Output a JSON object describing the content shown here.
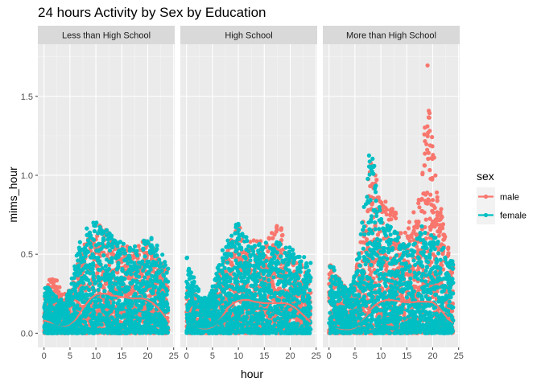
{
  "chart_data": {
    "type": "scatter",
    "title": "24 hours Activity by Sex by Education",
    "xlabel": "hour",
    "ylabel": "mims_hour",
    "xlim": [
      -1.2,
      25.2
    ],
    "ylim": [
      -0.09,
      1.83
    ],
    "x_ticks": [
      0,
      5,
      10,
      15,
      20,
      25
    ],
    "x_tick_labels": [
      "0",
      "5",
      "10",
      "15",
      "20",
      "25"
    ],
    "y_ticks": [
      0.0,
      0.5,
      1.0,
      1.5
    ],
    "y_tick_labels": [
      "0.0",
      "0.5",
      "1.0",
      "1.5"
    ],
    "grid": true,
    "legend": {
      "title": "sex",
      "placement": "right",
      "entries": [
        {
          "label": "male",
          "color": "#F8766D"
        },
        {
          "label": "female",
          "color": "#00BFC4"
        }
      ]
    },
    "series_colors": {
      "male": "#F8766D",
      "female": "#00BFC4"
    },
    "panels": [
      {
        "strip": "Less than High School",
        "series": [
          {
            "name": "male",
            "smooth_x": [
              0,
              1,
              2,
              3,
              4,
              5,
              6,
              7,
              8,
              9,
              10,
              11,
              12,
              13,
              14,
              15,
              16,
              17,
              18,
              19,
              20,
              21,
              22,
              23,
              23.9
            ],
            "smooth_y": [
              0.08,
              0.07,
              0.05,
              0.04,
              0.04,
              0.05,
              0.08,
              0.13,
              0.18,
              0.22,
              0.245,
              0.25,
              0.25,
              0.24,
              0.235,
              0.23,
              0.225,
              0.22,
              0.22,
              0.22,
              0.21,
              0.19,
              0.16,
              0.12,
              0.08
            ],
            "upper_y": [
              0.36,
              0.34,
              0.38,
              0.3,
              0.25,
              0.28,
              0.38,
              0.5,
              0.6,
              0.62,
              0.65,
              0.7,
              0.66,
              0.6,
              0.58,
              0.55,
              0.55,
              0.52,
              0.55,
              0.58,
              0.6,
              0.55,
              0.5,
              0.45,
              0.4
            ]
          },
          {
            "name": "female",
            "smooth_x": [
              0,
              1,
              2,
              3,
              4,
              5,
              6,
              7,
              8,
              9,
              10,
              11,
              12,
              13,
              14,
              15,
              16,
              17,
              18,
              19,
              20,
              21,
              22,
              23,
              23.9
            ],
            "smooth_y": [
              0.07,
              0.06,
              0.05,
              0.04,
              0.035,
              0.045,
              0.07,
              0.1,
              0.13,
              0.15,
              0.16,
              0.165,
              0.165,
              0.16,
              0.155,
              0.15,
              0.148,
              0.145,
              0.14,
              0.135,
              0.13,
              0.12,
              0.1,
              0.08,
              0.06
            ],
            "upper_y": [
              0.32,
              0.28,
              0.25,
              0.22,
              0.2,
              0.3,
              0.45,
              0.6,
              0.66,
              0.68,
              0.72,
              0.72,
              0.66,
              0.62,
              0.6,
              0.58,
              0.56,
              0.55,
              0.55,
              0.58,
              0.62,
              0.6,
              0.55,
              0.5,
              0.45
            ]
          }
        ]
      },
      {
        "strip": "High School",
        "series": [
          {
            "name": "male",
            "smooth_x": [
              0,
              1,
              2,
              3,
              4,
              5,
              6,
              7,
              8,
              9,
              10,
              11,
              12,
              13,
              14,
              15,
              16,
              17,
              18,
              19,
              20,
              21,
              22,
              23,
              23.9
            ],
            "smooth_y": [
              0.06,
              0.05,
              0.04,
              0.03,
              0.03,
              0.04,
              0.07,
              0.11,
              0.16,
              0.19,
              0.205,
              0.21,
              0.21,
              0.2,
              0.195,
              0.19,
              0.19,
              0.19,
              0.19,
              0.19,
              0.18,
              0.16,
              0.13,
              0.1,
              0.07
            ],
            "upper_y": [
              0.3,
              0.28,
              0.25,
              0.2,
              0.18,
              0.22,
              0.35,
              0.45,
              0.55,
              0.65,
              0.72,
              0.62,
              0.6,
              0.6,
              0.58,
              0.6,
              0.62,
              0.68,
              0.76,
              0.55,
              0.5,
              0.48,
              0.45,
              0.4,
              0.35
            ]
          },
          {
            "name": "female",
            "smooth_x": [
              0,
              1,
              2,
              3,
              4,
              5,
              6,
              7,
              8,
              9,
              10,
              11,
              12,
              13,
              14,
              15,
              16,
              17,
              18,
              19,
              20,
              21,
              22,
              23,
              23.9
            ],
            "smooth_y": [
              0.06,
              0.05,
              0.04,
              0.035,
              0.035,
              0.045,
              0.07,
              0.1,
              0.13,
              0.15,
              0.16,
              0.162,
              0.16,
              0.158,
              0.155,
              0.152,
              0.15,
              0.148,
              0.145,
              0.14,
              0.13,
              0.115,
              0.095,
              0.075,
              0.055
            ],
            "upper_y": [
              0.5,
              0.4,
              0.3,
              0.25,
              0.22,
              0.3,
              0.42,
              0.55,
              0.6,
              0.68,
              0.72,
              0.62,
              0.6,
              0.58,
              0.58,
              0.6,
              0.58,
              0.58,
              0.6,
              0.55,
              0.55,
              0.52,
              0.5,
              0.48,
              0.45
            ]
          }
        ]
      },
      {
        "strip": "More than High School",
        "series": [
          {
            "name": "male",
            "smooth_x": [
              0,
              1,
              2,
              3,
              4,
              5,
              6,
              7,
              8,
              9,
              10,
              11,
              12,
              13,
              14,
              15,
              16,
              17,
              18,
              19,
              20,
              21,
              22,
              23,
              23.9
            ],
            "smooth_y": [
              0.05,
              0.04,
              0.03,
              0.025,
              0.025,
              0.035,
              0.06,
              0.1,
              0.15,
              0.18,
              0.2,
              0.21,
              0.21,
              0.205,
              0.2,
              0.195,
              0.195,
              0.2,
              0.2,
              0.2,
              0.195,
              0.17,
              0.13,
              0.09,
              0.06
            ],
            "upper_y": [
              0.45,
              0.4,
              0.35,
              0.3,
              0.25,
              0.35,
              0.6,
              0.8,
              1.1,
              1.0,
              0.88,
              0.85,
              0.85,
              0.75,
              0.7,
              0.7,
              0.75,
              0.8,
              1.0,
              1.72,
              1.2,
              0.95,
              0.7,
              0.55,
              0.45
            ]
          },
          {
            "name": "female",
            "smooth_x": [
              0,
              1,
              2,
              3,
              4,
              5,
              6,
              7,
              8,
              9,
              10,
              11,
              12,
              13,
              14,
              15,
              16,
              17,
              18,
              19,
              20,
              21,
              22,
              23,
              23.9
            ],
            "smooth_y": [
              0.05,
              0.04,
              0.035,
              0.03,
              0.03,
              0.04,
              0.06,
              0.09,
              0.12,
              0.14,
              0.15,
              0.155,
              0.155,
              0.15,
              0.148,
              0.145,
              0.142,
              0.14,
              0.138,
              0.135,
              0.13,
              0.115,
              0.095,
              0.075,
              0.055
            ],
            "upper_y": [
              0.48,
              0.42,
              0.35,
              0.3,
              0.28,
              0.4,
              0.6,
              0.9,
              1.22,
              1.0,
              0.75,
              0.7,
              0.68,
              0.65,
              0.62,
              0.6,
              0.62,
              0.65,
              0.68,
              0.65,
              0.62,
              0.6,
              0.55,
              0.5,
              0.45
            ]
          }
        ]
      }
    ]
  }
}
